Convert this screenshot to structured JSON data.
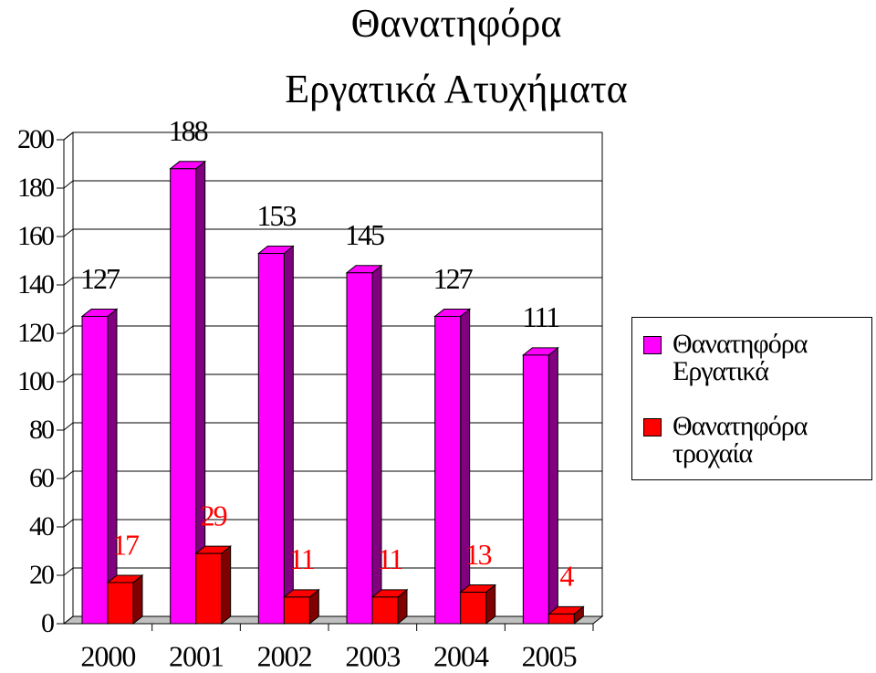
{
  "chart_data": {
    "type": "bar3d",
    "title": [
      "Θανατηφόρα",
      "Εργατικά Ατυχήματα"
    ],
    "categories": [
      "2000",
      "2001",
      "2002",
      "2003",
      "2004",
      "2005"
    ],
    "series": [
      {
        "name": "Θανατηφόρα Εργατικά",
        "color": "#ff00ff",
        "side": "#800080",
        "label_color": "#000000",
        "values": [
          127,
          188,
          153,
          145,
          127,
          111
        ]
      },
      {
        "name": "Θανατηφόρα τροχαία",
        "color": "#ff0000",
        "side": "#800000",
        "label_color": "#ff0000",
        "values": [
          17,
          29,
          11,
          11,
          13,
          4
        ]
      }
    ],
    "ylim": [
      0,
      200
    ],
    "yticks": [
      0,
      20,
      40,
      60,
      80,
      100,
      120,
      140,
      160,
      180,
      200
    ],
    "grid": true
  }
}
